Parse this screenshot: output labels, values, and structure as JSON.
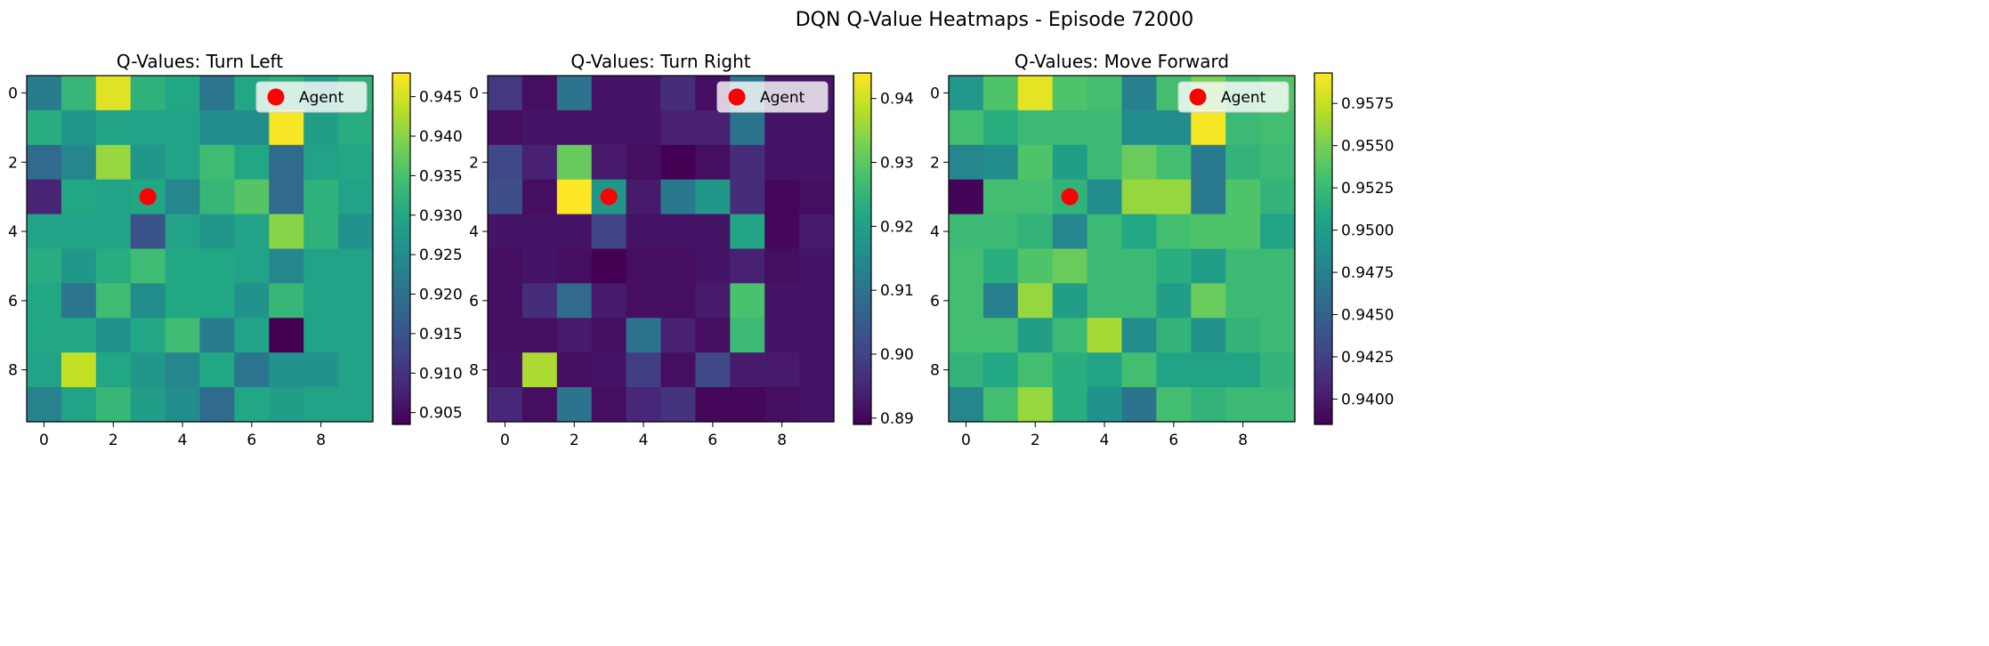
{
  "figure": {
    "suptitle": "DQN Q-Value Heatmaps - Episode 72000"
  },
  "chart_data": [
    {
      "type": "heatmap",
      "title": "Q-Values: Turn Left",
      "colormap": "viridis",
      "xticks": [
        0,
        2,
        4,
        6,
        8
      ],
      "yticks": [
        0,
        2,
        4,
        6,
        8
      ],
      "xlim": [
        -0.5,
        9.5
      ],
      "ylim": [
        9.5,
        -0.5
      ],
      "vmin": 0.9035,
      "vmax": 0.948,
      "colorbar_ticks": [
        0.905,
        0.91,
        0.915,
        0.92,
        0.925,
        0.93,
        0.935,
        0.94,
        0.945
      ],
      "colorbar_tick_labels": [
        "0.905",
        "0.910",
        "0.915",
        "0.920",
        "0.925",
        "0.930",
        "0.935",
        "0.940",
        "0.945"
      ],
      "legend": {
        "label": "Agent",
        "placement": "top-right"
      },
      "agent": {
        "x": 3,
        "y": 3,
        "color": "#ff0000"
      },
      "values": [
        [
          0.922,
          0.933,
          0.946,
          0.932,
          0.93,
          0.921,
          0.93,
          0.932,
          0.928,
          0.932
        ],
        [
          0.931,
          0.927,
          0.929,
          0.929,
          0.929,
          0.925,
          0.925,
          0.9475,
          0.928,
          0.931
        ],
        [
          0.919,
          0.924,
          0.941,
          0.927,
          0.929,
          0.934,
          0.93,
          0.919,
          0.929,
          0.93
        ],
        [
          0.908,
          0.93,
          0.929,
          0.93,
          0.924,
          0.933,
          0.936,
          0.919,
          0.932,
          0.929
        ],
        [
          0.929,
          0.929,
          0.929,
          0.915,
          0.929,
          0.927,
          0.929,
          0.94,
          0.932,
          0.926
        ],
        [
          0.931,
          0.927,
          0.931,
          0.934,
          0.93,
          0.93,
          0.929,
          0.924,
          0.929,
          0.929
        ],
        [
          0.93,
          0.921,
          0.934,
          0.925,
          0.93,
          0.93,
          0.926,
          0.933,
          0.929,
          0.929
        ],
        [
          0.93,
          0.93,
          0.926,
          0.93,
          0.934,
          0.922,
          0.929,
          0.9035,
          0.929,
          0.929
        ],
        [
          0.929,
          0.944,
          0.93,
          0.927,
          0.924,
          0.93,
          0.921,
          0.926,
          0.926,
          0.929
        ],
        [
          0.923,
          0.929,
          0.933,
          0.928,
          0.925,
          0.919,
          0.93,
          0.928,
          0.929,
          0.929
        ]
      ]
    },
    {
      "type": "heatmap",
      "title": "Q-Values: Turn Right",
      "colormap": "viridis",
      "xticks": [
        0,
        2,
        4,
        6,
        8
      ],
      "yticks": [
        0,
        2,
        4,
        6,
        8
      ],
      "xlim": [
        -0.5,
        9.5
      ],
      "ylim": [
        9.5,
        -0.5
      ],
      "vmin": 0.889,
      "vmax": 0.944,
      "colorbar_ticks": [
        0.89,
        0.9,
        0.91,
        0.92,
        0.93,
        0.94
      ],
      "colorbar_tick_labels": [
        "0.89",
        "0.90",
        "0.91",
        "0.92",
        "0.93",
        "0.94"
      ],
      "legend": {
        "label": "Agent",
        "placement": "top-right"
      },
      "agent": {
        "x": 3,
        "y": 3,
        "color": "#ff0000"
      },
      "values": [
        [
          0.898,
          0.891,
          0.91,
          0.892,
          0.892,
          0.896,
          0.891,
          0.911,
          0.892,
          0.892
        ],
        [
          0.891,
          0.892,
          0.892,
          0.892,
          0.892,
          0.894,
          0.894,
          0.91,
          0.892,
          0.892
        ],
        [
          0.901,
          0.894,
          0.931,
          0.893,
          0.891,
          0.889,
          0.891,
          0.896,
          0.892,
          0.892
        ],
        [
          0.902,
          0.891,
          0.944,
          0.918,
          0.893,
          0.911,
          0.918,
          0.896,
          0.89,
          0.891
        ],
        [
          0.892,
          0.892,
          0.892,
          0.9,
          0.892,
          0.892,
          0.892,
          0.921,
          0.89,
          0.893
        ],
        [
          0.891,
          0.892,
          0.891,
          0.889,
          0.891,
          0.891,
          0.892,
          0.894,
          0.891,
          0.892
        ],
        [
          0.891,
          0.896,
          0.908,
          0.893,
          0.891,
          0.891,
          0.893,
          0.928,
          0.892,
          0.892
        ],
        [
          0.891,
          0.891,
          0.893,
          0.891,
          0.91,
          0.894,
          0.891,
          0.926,
          0.892,
          0.892
        ],
        [
          0.892,
          0.937,
          0.891,
          0.892,
          0.899,
          0.891,
          0.901,
          0.893,
          0.893,
          0.892
        ],
        [
          0.895,
          0.891,
          0.91,
          0.891,
          0.895,
          0.897,
          0.89,
          0.89,
          0.891,
          0.892
        ]
      ]
    },
    {
      "type": "heatmap",
      "title": "Q-Values: Move Forward",
      "colormap": "viridis",
      "xticks": [
        0,
        2,
        4,
        6,
        8
      ],
      "yticks": [
        0,
        2,
        4,
        6,
        8
      ],
      "xlim": [
        -0.5,
        9.5
      ],
      "ylim": [
        9.5,
        -0.5
      ],
      "vmin": 0.9385,
      "vmax": 0.9593,
      "colorbar_ticks": [
        0.94,
        0.9425,
        0.945,
        0.9475,
        0.95,
        0.9525,
        0.955,
        0.9575
      ],
      "colorbar_tick_labels": [
        "0.9400",
        "0.9425",
        "0.9450",
        "0.9475",
        "0.9500",
        "0.9525",
        "0.9550",
        "0.9575"
      ],
      "legend": {
        "label": "Agent",
        "placement": "top-right"
      },
      "agent": {
        "x": 3,
        "y": 3,
        "color": "#ff0000"
      },
      "values": [
        [
          0.9495,
          0.9535,
          0.9585,
          0.9535,
          0.953,
          0.9475,
          0.953,
          0.955,
          0.953,
          0.9535
        ],
        [
          0.953,
          0.9515,
          0.9525,
          0.9525,
          0.9525,
          0.9485,
          0.9485,
          0.959,
          0.9525,
          0.953
        ],
        [
          0.948,
          0.9485,
          0.9535,
          0.95,
          0.9525,
          0.9545,
          0.953,
          0.947,
          0.952,
          0.9525
        ],
        [
          0.9387,
          0.953,
          0.953,
          0.952,
          0.9485,
          0.956,
          0.956,
          0.947,
          0.9535,
          0.952
        ],
        [
          0.9525,
          0.9525,
          0.952,
          0.948,
          0.9525,
          0.951,
          0.953,
          0.9535,
          0.9535,
          0.9505
        ],
        [
          0.953,
          0.9515,
          0.9535,
          0.9545,
          0.9525,
          0.9525,
          0.9515,
          0.95,
          0.9525,
          0.9525
        ],
        [
          0.953,
          0.9475,
          0.956,
          0.95,
          0.9525,
          0.9525,
          0.95,
          0.9545,
          0.9525,
          0.9525
        ],
        [
          0.953,
          0.953,
          0.95,
          0.9525,
          0.9565,
          0.9485,
          0.952,
          0.949,
          0.952,
          0.9525
        ],
        [
          0.952,
          0.951,
          0.953,
          0.9515,
          0.9505,
          0.953,
          0.9505,
          0.9505,
          0.9505,
          0.952
        ],
        [
          0.948,
          0.953,
          0.956,
          0.9515,
          0.949,
          0.9465,
          0.953,
          0.952,
          0.9525,
          0.9525
        ]
      ]
    }
  ]
}
